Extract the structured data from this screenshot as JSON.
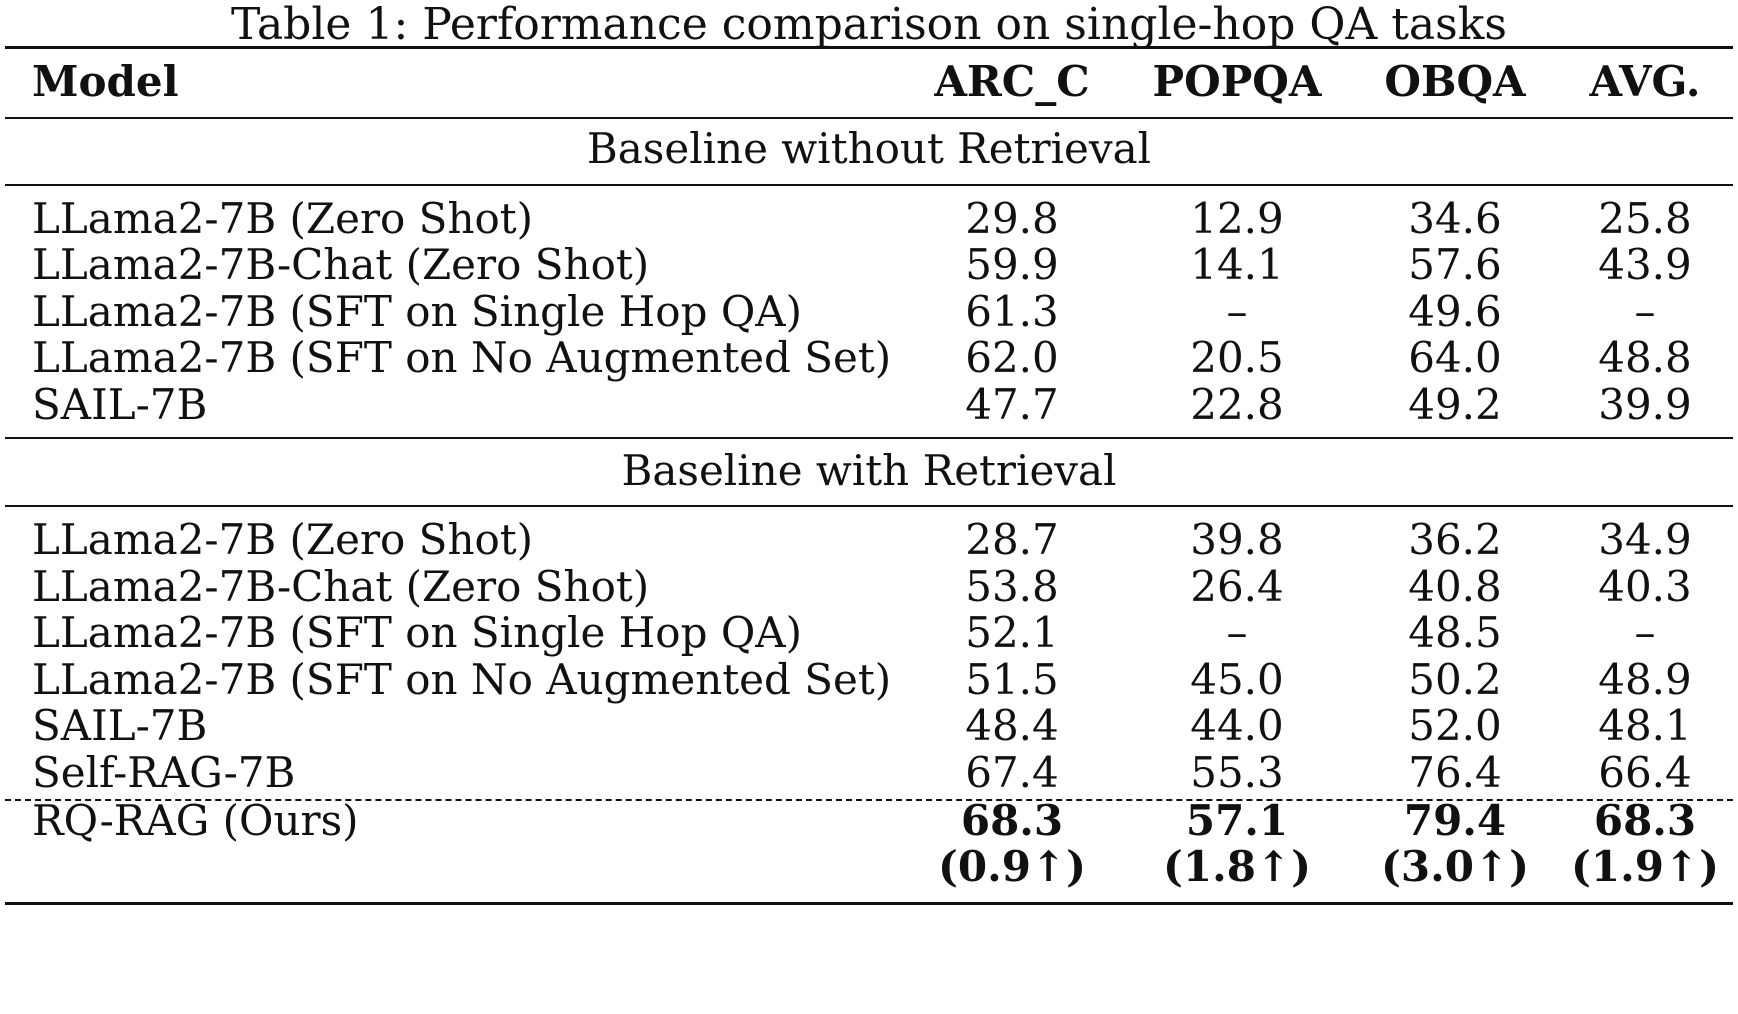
{
  "caption": "Table 1: Performance comparison on single-hop QA tasks",
  "columns": [
    "Model",
    "ARC_C",
    "POPQA",
    "OBQA",
    "AVG."
  ],
  "sections": [
    {
      "title": "Baseline without Retrieval",
      "rows": [
        {
          "model": "LLama2-7B (Zero Shot)",
          "values": [
            "29.8",
            "12.9",
            "34.6",
            "25.8"
          ]
        },
        {
          "model": "LLama2-7B-Chat (Zero Shot)",
          "values": [
            "59.9",
            "14.1",
            "57.6",
            "43.9"
          ]
        },
        {
          "model": "LLama2-7B (SFT on Single Hop QA)",
          "values": [
            "61.3",
            "–",
            "49.6",
            "–"
          ]
        },
        {
          "model": "LLama2-7B (SFT on No Augmented Set)",
          "values": [
            "62.0",
            "20.5",
            "64.0",
            "48.8"
          ]
        },
        {
          "model": "SAIL-7B",
          "values": [
            "47.7",
            "22.8",
            "49.2",
            "39.9"
          ]
        }
      ]
    },
    {
      "title": "Baseline with Retrieval",
      "rows": [
        {
          "model": "LLama2-7B (Zero Shot)",
          "values": [
            "28.7",
            "39.8",
            "36.2",
            "34.9"
          ]
        },
        {
          "model": "LLama2-7B-Chat (Zero Shot)",
          "values": [
            "53.8",
            "26.4",
            "40.8",
            "40.3"
          ]
        },
        {
          "model": "LLama2-7B (SFT on Single Hop QA)",
          "values": [
            "52.1",
            "–",
            "48.5",
            "–"
          ]
        },
        {
          "model": "LLama2-7B (SFT on No Augmented Set)",
          "values": [
            "51.5",
            "45.0",
            "50.2",
            "48.9"
          ]
        },
        {
          "model": "SAIL-7B",
          "values": [
            "48.4",
            "44.0",
            "52.0",
            "48.1"
          ]
        },
        {
          "model": "Self-RAG-7B",
          "values": [
            "67.4",
            "55.3",
            "76.4",
            "66.4"
          ]
        }
      ]
    }
  ],
  "ours": {
    "model": "RQ-RAG (Ours)",
    "values": [
      "68.3",
      "57.1",
      "79.4",
      "68.3"
    ],
    "gains": [
      "(0.9↑)",
      "(1.8↑)",
      "(3.0↑)",
      "(1.9↑)"
    ]
  }
}
